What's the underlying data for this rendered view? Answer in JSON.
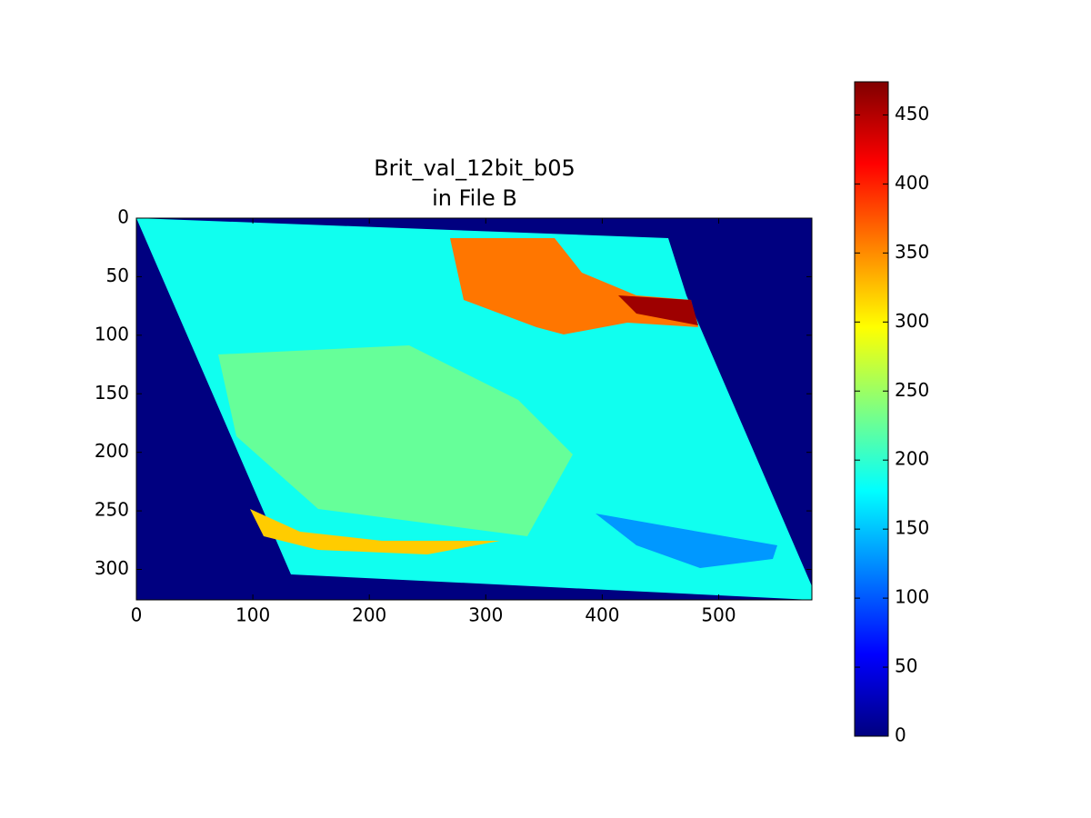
{
  "chart_data": {
    "type": "image",
    "title": "Brit_val_12bit_b05",
    "subtitle": "in File B",
    "xlim": [
      0,
      580
    ],
    "xticks": [
      0,
      100,
      200,
      300,
      400,
      500
    ],
    "ylim": [
      326,
      0
    ],
    "yticks": [
      0,
      50,
      100,
      150,
      200,
      250,
      300
    ],
    "colormap": "jet",
    "values": [
      0,
      185,
      225,
      130,
      320,
      360,
      460
    ],
    "colorbar": {
      "lim": [
        0,
        474
      ],
      "ticks": [
        0,
        50,
        100,
        150,
        200,
        250,
        300,
        350,
        400,
        450
      ]
    }
  }
}
